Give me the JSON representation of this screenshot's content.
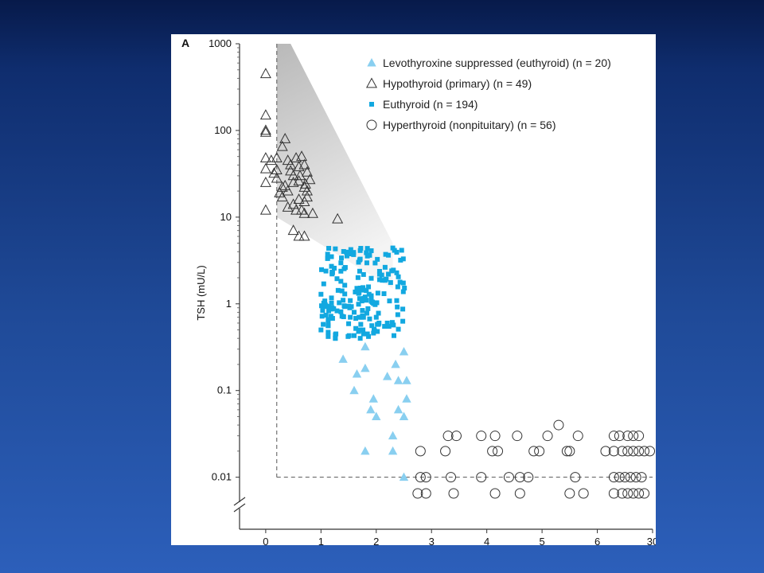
{
  "chart_data": {
    "type": "scatter",
    "panel_label": "A",
    "ylabel": "TSH (mU/L)",
    "yscale": "log",
    "ylim": [
      0.004,
      1000
    ],
    "xlim": [
      -0.2,
      7.0
    ],
    "y_ticks": [
      {
        "value": 1000,
        "label": "1000"
      },
      {
        "value": 100,
        "label": "100"
      },
      {
        "value": 10,
        "label": "10"
      },
      {
        "value": 1,
        "label": "1"
      },
      {
        "value": 0.1,
        "label": "0.1"
      },
      {
        "value": 0.01,
        "label": "0.01"
      }
    ],
    "x_ticks": [
      {
        "value": 0,
        "label": "0"
      },
      {
        "value": 1,
        "label": "1"
      },
      {
        "value": 2,
        "label": "2"
      },
      {
        "value": 3,
        "label": "3"
      },
      {
        "value": 4,
        "label": "4"
      },
      {
        "value": 5,
        "label": "5"
      },
      {
        "value": 6,
        "label": "6"
      },
      {
        "value": 7,
        "label": "30"
      }
    ],
    "reference_lines": {
      "tsh_lower": 0.01,
      "x_left": 0.2
    },
    "shaded_band": [
      [
        0.2,
        1000
      ],
      [
        0.45,
        1000
      ],
      [
        2.3,
        5
      ],
      [
        2.3,
        1.5
      ],
      [
        0.2,
        10
      ]
    ],
    "legend_position": "top-right",
    "colors": {
      "levothyroxine": "#89cff0",
      "euthyroid": "#12a8e0",
      "outline": "#333333"
    },
    "series": [
      {
        "name": "Levothyroxine suppressed (euthyroid) (n = 20)",
        "marker": "filled-triangle",
        "points": [
          [
            1.8,
            0.32
          ],
          [
            1.4,
            0.23
          ],
          [
            1.8,
            0.18
          ],
          [
            1.65,
            0.155
          ],
          [
            2.35,
            0.2
          ],
          [
            2.4,
            0.13
          ],
          [
            1.6,
            0.1
          ],
          [
            2.2,
            0.145
          ],
          [
            2.55,
            0.13
          ],
          [
            1.95,
            0.08
          ],
          [
            2.55,
            0.08
          ],
          [
            1.9,
            0.06
          ],
          [
            2.4,
            0.06
          ],
          [
            2.0,
            0.05
          ],
          [
            2.5,
            0.05
          ],
          [
            2.3,
            0.03
          ],
          [
            1.8,
            0.02
          ],
          [
            2.3,
            0.02
          ],
          [
            2.5,
            0.28
          ],
          [
            2.5,
            0.01
          ]
        ]
      },
      {
        "name": "Hypothyroid (primary) (n = 49)",
        "marker": "open-triangle",
        "points": [
          [
            0.0,
            450
          ],
          [
            0.0,
            150
          ],
          [
            0.0,
            100
          ],
          [
            0.0,
            95
          ],
          [
            0.0,
            48
          ],
          [
            0.0,
            36
          ],
          [
            0.0,
            25
          ],
          [
            0.0,
            12
          ],
          [
            0.2,
            48
          ],
          [
            0.2,
            35
          ],
          [
            0.3,
            65
          ],
          [
            0.35,
            80
          ],
          [
            0.4,
            45
          ],
          [
            0.45,
            40
          ],
          [
            0.5,
            30
          ],
          [
            0.55,
            48
          ],
          [
            0.6,
            38
          ],
          [
            0.65,
            50
          ],
          [
            0.7,
            40
          ],
          [
            0.75,
            33
          ],
          [
            0.8,
            27
          ],
          [
            0.2,
            28
          ],
          [
            0.3,
            22
          ],
          [
            0.4,
            20
          ],
          [
            0.5,
            25
          ],
          [
            0.6,
            26
          ],
          [
            0.7,
            22
          ],
          [
            0.75,
            20
          ],
          [
            0.75,
            17
          ],
          [
            0.7,
            15
          ],
          [
            0.6,
            16
          ],
          [
            0.5,
            14
          ],
          [
            0.4,
            13
          ],
          [
            0.3,
            17
          ],
          [
            0.25,
            19
          ],
          [
            0.55,
            12
          ],
          [
            0.65,
            12
          ],
          [
            0.7,
            11
          ],
          [
            0.85,
            11
          ],
          [
            0.5,
            7
          ],
          [
            0.6,
            6
          ],
          [
            0.7,
            6
          ],
          [
            1.3,
            9.5
          ],
          [
            0.45,
            34
          ],
          [
            0.35,
            23
          ],
          [
            0.1,
            45
          ],
          [
            0.15,
            32
          ],
          [
            0.62,
            30
          ],
          [
            0.72,
            24
          ]
        ]
      },
      {
        "name": "Euthyroid (n = 194)",
        "marker": "filled-square",
        "points": [
          [
            1.0,
            0.5
          ],
          [
            1.2,
            0.9
          ],
          [
            1.4,
            1.1
          ],
          [
            1.6,
            0.8
          ],
          [
            1.8,
            1.2
          ],
          [
            2.0,
            0.7
          ],
          [
            2.2,
            0.6
          ]
        ]
      },
      {
        "name": "Hyperthyroid (nonpituitary) (n = 56)",
        "marker": "open-circle",
        "points": [
          [
            2.8,
            0.02
          ],
          [
            2.8,
            0.01
          ],
          [
            2.9,
            0.01
          ],
          [
            3.3,
            0.03
          ],
          [
            3.45,
            0.03
          ],
          [
            3.25,
            0.02
          ],
          [
            3.35,
            0.01
          ],
          [
            3.9,
            0.03
          ],
          [
            4.15,
            0.03
          ],
          [
            4.1,
            0.02
          ],
          [
            4.2,
            0.02
          ],
          [
            4.55,
            0.03
          ],
          [
            4.85,
            0.02
          ],
          [
            4.95,
            0.02
          ],
          [
            5.1,
            0.03
          ],
          [
            5.3,
            0.04
          ],
          [
            3.9,
            0.01
          ],
          [
            4.4,
            0.01
          ],
          [
            4.6,
            0.01
          ],
          [
            4.75,
            0.01
          ],
          [
            5.6,
            0.01
          ],
          [
            6.15,
            0.02
          ],
          [
            6.3,
            0.02
          ],
          [
            6.45,
            0.02
          ],
          [
            6.55,
            0.02
          ],
          [
            6.65,
            0.02
          ],
          [
            6.75,
            0.02
          ],
          [
            6.85,
            0.02
          ],
          [
            6.95,
            0.02
          ],
          [
            6.3,
            0.03
          ],
          [
            6.4,
            0.03
          ],
          [
            6.55,
            0.03
          ],
          [
            6.65,
            0.03
          ],
          [
            6.75,
            0.03
          ],
          [
            6.3,
            0.01
          ],
          [
            6.4,
            0.01
          ],
          [
            6.5,
            0.01
          ],
          [
            6.6,
            0.01
          ],
          [
            6.7,
            0.01
          ],
          [
            6.8,
            0.01
          ],
          [
            2.75,
            0.0065
          ],
          [
            2.9,
            0.0065
          ],
          [
            3.4,
            0.0065
          ],
          [
            4.15,
            0.0065
          ],
          [
            4.6,
            0.0065
          ],
          [
            5.5,
            0.0065
          ],
          [
            5.75,
            0.0065
          ],
          [
            6.3,
            0.0065
          ],
          [
            6.45,
            0.0065
          ],
          [
            6.55,
            0.0065
          ],
          [
            6.65,
            0.0065
          ],
          [
            6.75,
            0.0065
          ],
          [
            6.85,
            0.0065
          ],
          [
            5.5,
            0.02
          ],
          [
            5.65,
            0.03
          ],
          [
            5.45,
            0.02
          ]
        ]
      }
    ]
  }
}
